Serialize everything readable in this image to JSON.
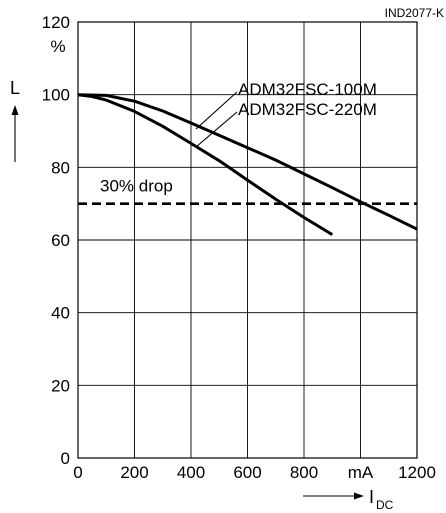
{
  "chart_data": {
    "type": "line",
    "figure_id": "IND2077-K",
    "ylabel": "L",
    "yunit": "%",
    "xlabel": "I",
    "xlabel_sub": "DC",
    "xunit": "mA",
    "xlim": [
      0,
      1200
    ],
    "ylim": [
      0,
      120
    ],
    "grid": true,
    "x_ticks": [
      "0",
      "200",
      "400",
      "600",
      "800",
      "mA",
      "1200"
    ],
    "y_ticks": [
      "0",
      "20",
      "40",
      "60",
      "80",
      "100",
      "120"
    ],
    "reference_line": {
      "label": "30% drop",
      "y": 70,
      "style": "dashed"
    },
    "series": [
      {
        "name": "ADM32FSC-100M",
        "points": [
          [
            0,
            100
          ],
          [
            100,
            99.8
          ],
          [
            200,
            98.2
          ],
          [
            300,
            95.5
          ],
          [
            400,
            92.2
          ],
          [
            500,
            88.8
          ],
          [
            600,
            85.4
          ],
          [
            700,
            82.0
          ],
          [
            800,
            78.2
          ],
          [
            900,
            74.4
          ],
          [
            1000,
            70.5
          ],
          [
            1100,
            66.8
          ],
          [
            1200,
            63.0
          ]
        ]
      },
      {
        "name": "ADM32FSC-220M",
        "points": [
          [
            0,
            100
          ],
          [
            50,
            99.5
          ],
          [
            100,
            98.5
          ],
          [
            200,
            95.4
          ],
          [
            300,
            91.3
          ],
          [
            400,
            86.6
          ],
          [
            500,
            81.8
          ],
          [
            600,
            76.5
          ],
          [
            700,
            71.2
          ],
          [
            800,
            66.2
          ],
          [
            900,
            61.5
          ]
        ]
      }
    ]
  }
}
